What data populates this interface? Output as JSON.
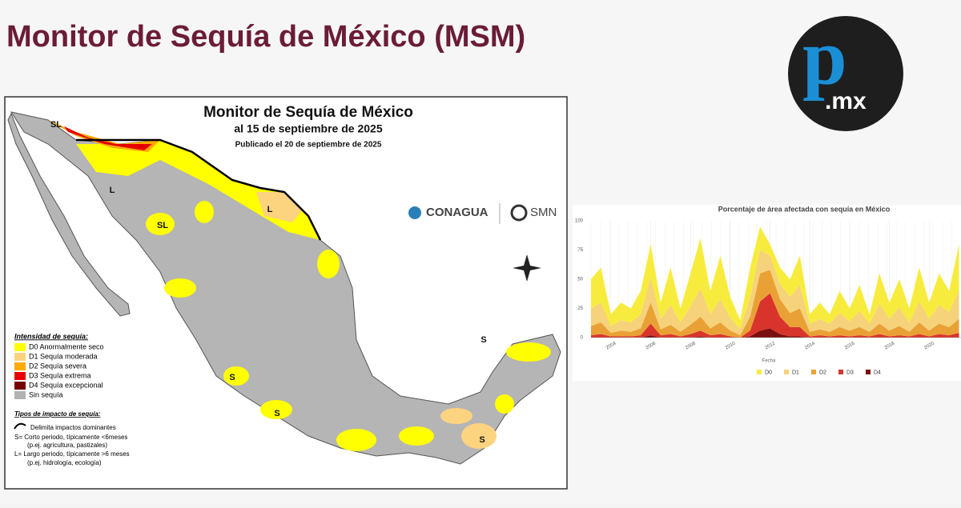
{
  "header": {
    "title": "Monitor de Sequía de México (MSM)",
    "logo": {
      "letter": "p",
      "suffix": ".mx"
    }
  },
  "map": {
    "title": "Monitor de Sequía de México",
    "subtitle": "al 15 de septiembre de 2025",
    "published": "Publicado el 20 de septiembre de 2025",
    "logos": [
      "CONAGUA",
      "SMN"
    ],
    "legend_title": "Intensidad de sequía:",
    "legend": [
      {
        "label": "D0 Anormalmente seco",
        "color": "#ffff00"
      },
      {
        "label": "D1 Sequía moderada",
        "color": "#fcd37f"
      },
      {
        "label": "D2 Sequía severa",
        "color": "#ffaa00"
      },
      {
        "label": "D3 Sequía extrema",
        "color": "#e60000"
      },
      {
        "label": "D4 Sequía excepcional",
        "color": "#730000"
      },
      {
        "label": "Sin sequía",
        "color": "#b2b2b2"
      }
    ],
    "impact_title": "Tipos de impacto de sequía:",
    "impacts": [
      "Delimita impactos dominantes",
      "S= Corto periodo, típicamente <6meses",
      "(p.ej. agricultura, pastizales)",
      "L= Largo periodo, típicamente >6 meses",
      "(p.ej. hidrología, ecología)"
    ],
    "labels": [
      "SL",
      "L",
      "L",
      "SL",
      "S",
      "S",
      "S",
      "S"
    ]
  },
  "chart_data": {
    "type": "stacked_area",
    "title": "Porcentaje de área afectada con sequía en México",
    "xlabel": "Fecha",
    "x": [
      2003,
      2003.5,
      2004,
      2004.5,
      2005,
      2005.5,
      2006,
      2006.5,
      2007,
      2007.5,
      2008,
      2008.5,
      2009,
      2009.5,
      2010,
      2010.5,
      2011,
      2011.5,
      2012,
      2012.5,
      2013,
      2013.5,
      2014,
      2014.5,
      2015,
      2015.5,
      2016,
      2016.5,
      2017,
      2017.5,
      2018,
      2018.5,
      2019,
      2019.5,
      2020,
      2020.5,
      2021,
      2021.5
    ],
    "series": [
      {
        "name": "D0",
        "color": "#f7ec3e",
        "values": [
          25,
          30,
          10,
          15,
          12,
          20,
          28,
          14,
          32,
          12,
          28,
          43,
          20,
          37,
          18,
          8,
          25,
          20,
          10,
          14,
          15,
          25,
          8,
          14,
          8,
          19,
          11,
          22,
          8,
          26,
          14,
          24,
          12,
          29,
          14,
          27,
          18,
          40
        ]
      },
      {
        "name": "D1",
        "color": "#f6d27a",
        "values": [
          15,
          17,
          6,
          9,
          8,
          12,
          22,
          9,
          17,
          8,
          16,
          24,
          12,
          20,
          11,
          5,
          17,
          20,
          12,
          13,
          14,
          20,
          7,
          9,
          7,
          12,
          8,
          14,
          7,
          17,
          10,
          16,
          8,
          18,
          10,
          16,
          13,
          24
        ]
      },
      {
        "name": "D2",
        "color": "#e9a136",
        "values": [
          8,
          10,
          3,
          5,
          4,
          6,
          18,
          5,
          8,
          4,
          8,
          12,
          6,
          10,
          5,
          2,
          12,
          24,
          20,
          15,
          12,
          16,
          4,
          5,
          4,
          7,
          5,
          7,
          4,
          9,
          5,
          8,
          4,
          10,
          5,
          9,
          7,
          12
        ]
      },
      {
        "name": "D3",
        "color": "#d9342b",
        "values": [
          2,
          3,
          1,
          1,
          1,
          2,
          10,
          2,
          3,
          1,
          3,
          5,
          2,
          3,
          1,
          0,
          5,
          25,
          30,
          15,
          8,
          8,
          1,
          2,
          1,
          2,
          1,
          2,
          1,
          3,
          1,
          2,
          1,
          3,
          1,
          3,
          2,
          4
        ]
      },
      {
        "name": "D4",
        "color": "#7a0f0f",
        "values": [
          0,
          0,
          0,
          0,
          0,
          0,
          2,
          0,
          0,
          0,
          0,
          1,
          0,
          0,
          0,
          0,
          1,
          6,
          8,
          3,
          1,
          1,
          0,
          0,
          0,
          0,
          0,
          0,
          0,
          0,
          0,
          0,
          0,
          0,
          0,
          0,
          0,
          0
        ]
      }
    ],
    "xlim": [
      2003,
      2021.6
    ],
    "xticks": [
      2004,
      2006,
      2008,
      2010,
      2012,
      2014,
      2016,
      2018,
      2020
    ],
    "ylim": [
      0,
      100
    ],
    "yticks": [
      0,
      25,
      50,
      75,
      100
    ],
    "grid": true
  }
}
